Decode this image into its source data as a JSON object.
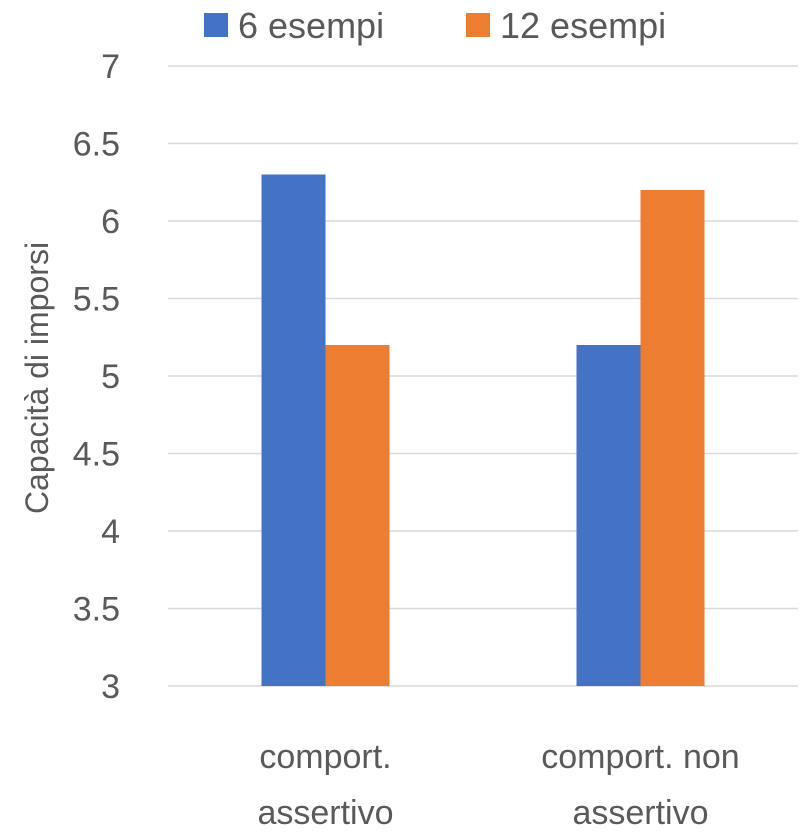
{
  "chart_data": {
    "type": "bar",
    "title": "",
    "xlabel": "",
    "ylabel": "Capacità di imporsi",
    "categories": [
      [
        "comport.",
        "assertivo"
      ],
      [
        "comport. non",
        "assertivo"
      ]
    ],
    "series": [
      {
        "name": "6 esempi",
        "color": "#4472C4",
        "values": [
          6.3,
          5.2
        ]
      },
      {
        "name": "12 esempi",
        "color": "#ED7D31",
        "values": [
          5.2,
          6.2
        ]
      }
    ],
    "ylim": [
      3,
      7
    ],
    "yticks": [
      "3",
      "3.5",
      "4",
      "4.5",
      "5",
      "5.5",
      "6",
      "6.5",
      "7"
    ],
    "grid": true,
    "gridline_color": "#D9D9D9",
    "legend_position": "top"
  }
}
